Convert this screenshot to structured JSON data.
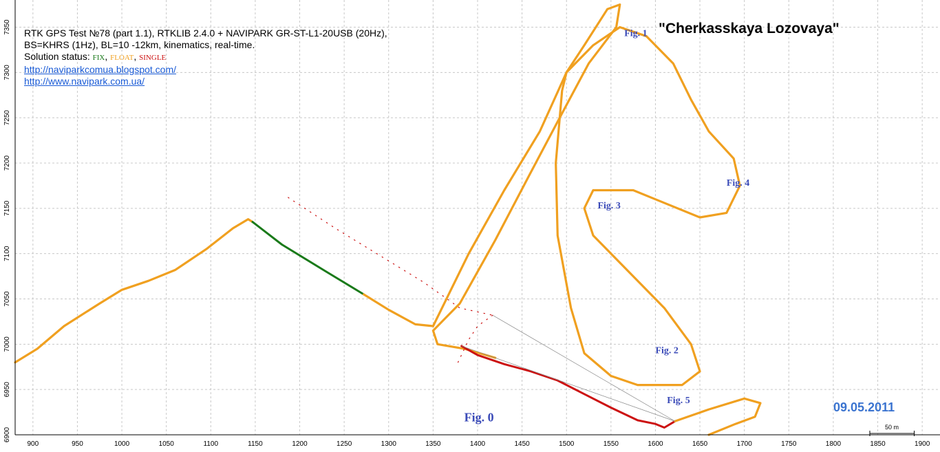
{
  "header": {
    "line1": "RTK GPS Test №78 (part 1.1), RTKLIB 2.4.0 + NAVIPARK GR-ST-L1-20USB (20Hz),",
    "line2": "BS=KHRS (1Hz), BL=10 -12km, kinematics, real-time.",
    "status_label": "Solution status: ",
    "status_fix": "FIX",
    "status_float": "FLOAT",
    "status_single": "SINGLE",
    "link1": "http://naviparkcomua.blogspot.com/",
    "link2": "http://www.navipark.com.ua/"
  },
  "title": "\"Cherkasskaya Lozovaya\"",
  "date": "09.05.2011",
  "scale": {
    "label": "50 m",
    "length_m": 50
  },
  "colors": {
    "fix": "#1a7a1a",
    "float": "#f0a020",
    "single": "#cc1111",
    "labels": "#3b4bb8",
    "date": "#3b74d0"
  },
  "chart_data": {
    "type": "line",
    "title": "\"Cherkasskaya Lozovaya\"",
    "xlabel": "",
    "ylabel": "",
    "xlim": [
      880,
      1920
    ],
    "ylim": [
      6900,
      7380
    ],
    "grid": true,
    "x_ticks": [
      900,
      950,
      1000,
      1050,
      1100,
      1150,
      1200,
      1250,
      1300,
      1350,
      1400,
      1450,
      1500,
      1550,
      1600,
      1650,
      1700,
      1750,
      1800,
      1850,
      1900
    ],
    "y_ticks": [
      6900,
      6950,
      7000,
      7050,
      7100,
      7150,
      7200,
      7250,
      7300,
      7350
    ],
    "legend": [
      "FIX",
      "FLOAT",
      "SINGLE"
    ],
    "series": [
      {
        "name": "FLOAT",
        "segment": "west-approach",
        "points": [
          [
            880,
            6980
          ],
          [
            905,
            6995
          ],
          [
            935,
            7020
          ],
          [
            975,
            7045
          ],
          [
            1000,
            7060
          ],
          [
            1030,
            7070
          ],
          [
            1060,
            7082
          ],
          [
            1095,
            7105
          ],
          [
            1125,
            7128
          ],
          [
            1142,
            7138
          ],
          [
            1147,
            7135
          ]
        ]
      },
      {
        "name": "FIX",
        "segment": "descent",
        "points": [
          [
            1147,
            7135
          ],
          [
            1180,
            7110
          ],
          [
            1230,
            7080
          ],
          [
            1272,
            7055
          ]
        ]
      },
      {
        "name": "FLOAT",
        "segment": "to-junction",
        "points": [
          [
            1272,
            7055
          ],
          [
            1300,
            7038
          ],
          [
            1330,
            7022
          ],
          [
            1350,
            7020
          ]
        ]
      },
      {
        "name": "FLOAT",
        "segment": "figure-1-strip",
        "points": [
          [
            1350,
            7020
          ],
          [
            1390,
            7100
          ],
          [
            1430,
            7170
          ],
          [
            1470,
            7235
          ],
          [
            1500,
            7300
          ],
          [
            1520,
            7330
          ],
          [
            1546,
            7370
          ],
          [
            1560,
            7375
          ],
          [
            1556,
            7350
          ],
          [
            1525,
            7310
          ],
          [
            1495,
            7255
          ],
          [
            1460,
            7190
          ],
          [
            1420,
            7115
          ],
          [
            1380,
            7045
          ],
          [
            1350,
            7015
          ],
          [
            1355,
            7000
          ],
          [
            1385,
            6995
          ],
          [
            1420,
            6985
          ]
        ]
      },
      {
        "name": "FLOAT",
        "segment": "figures-2-3-4",
        "points": [
          [
            1500,
            7300
          ],
          [
            1530,
            7330
          ],
          [
            1560,
            7350
          ],
          [
            1590,
            7340
          ],
          [
            1620,
            7310
          ],
          [
            1640,
            7270
          ],
          [
            1660,
            7235
          ],
          [
            1688,
            7205
          ],
          [
            1695,
            7175
          ],
          [
            1680,
            7145
          ],
          [
            1650,
            7140
          ],
          [
            1600,
            7160
          ],
          [
            1575,
            7170
          ],
          [
            1530,
            7170
          ],
          [
            1520,
            7150
          ],
          [
            1530,
            7120
          ],
          [
            1570,
            7080
          ],
          [
            1610,
            7040
          ],
          [
            1640,
            7000
          ],
          [
            1650,
            6970
          ],
          [
            1630,
            6955
          ],
          [
            1580,
            6955
          ],
          [
            1550,
            6965
          ],
          [
            1520,
            6990
          ],
          [
            1505,
            7040
          ],
          [
            1490,
            7120
          ],
          [
            1488,
            7200
          ],
          [
            1495,
            7280
          ],
          [
            1500,
            7300
          ]
        ]
      },
      {
        "name": "SINGLE",
        "segment": "return",
        "points": [
          [
            1382,
            6998
          ],
          [
            1400,
            6988
          ],
          [
            1430,
            6978
          ],
          [
            1460,
            6970
          ],
          [
            1490,
            6960
          ],
          [
            1520,
            6945
          ],
          [
            1550,
            6930
          ],
          [
            1580,
            6916
          ],
          [
            1600,
            6912
          ],
          [
            1610,
            6908
          ],
          [
            1622,
            6915
          ]
        ]
      },
      {
        "name": "FLOAT",
        "segment": "fig-5-exit",
        "points": [
          [
            1622,
            6915
          ],
          [
            1660,
            6928
          ],
          [
            1700,
            6940
          ],
          [
            1718,
            6935
          ],
          [
            1712,
            6920
          ],
          [
            1690,
            6912
          ],
          [
            1660,
            6900
          ]
        ]
      }
    ],
    "annotations": [
      {
        "text": "Fig. 0",
        "x": 1385,
        "y": 6915
      },
      {
        "text": "Fig. 1",
        "x": 1565,
        "y": 7340
      },
      {
        "text": "Fig. 2",
        "x": 1600,
        "y": 6990
      },
      {
        "text": "Fig. 3",
        "x": 1535,
        "y": 7150
      },
      {
        "text": "Fig. 4",
        "x": 1680,
        "y": 7175
      },
      {
        "text": "Fig. 5",
        "x": 1613,
        "y": 6935
      }
    ]
  }
}
